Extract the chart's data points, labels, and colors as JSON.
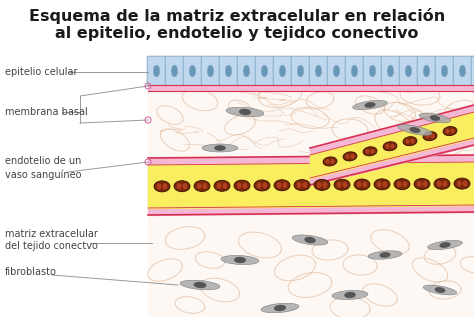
{
  "title_line1": "Esquema de la matriz extracelular en relación",
  "title_line2": "al epitelio, endotelio y tejidco conectivo",
  "title_fontsize": 11.5,
  "bg_color": "#ffffff",
  "labels": {
    "epitelio_celular": "epitelio celular",
    "membrana_basal": "membrana basal",
    "endotelio": "endotelio de un\nvaso sanguíneo",
    "matriz": "matriz extracelular\ndel tejido conectvo",
    "fibroblasto": "fibroblasto"
  },
  "epithelium_color": "#c0d8ee",
  "epithelium_border": "#88aac8",
  "epithelium_nucleus_color": "#6898b8",
  "membrane_basal_color": "#f4b8d4",
  "membrane_basal_border": "#d8508a",
  "vessel_wall_color": "#f4b8d4",
  "vessel_wall_border": "#d83050",
  "vessel_interior_color": "#f8ee60",
  "vessel_interior_rbc_color": "#7a2808",
  "connective_tissue_bg": "#fdf8f4",
  "fiber_color": "#e0b898",
  "fibroblast_color": "#aaaaaa",
  "fibroblast_border": "#707070",
  "fibroblast_nucleus": "#555555",
  "label_color": "#444444",
  "label_fontsize": 7.0,
  "line_color": "#999999"
}
